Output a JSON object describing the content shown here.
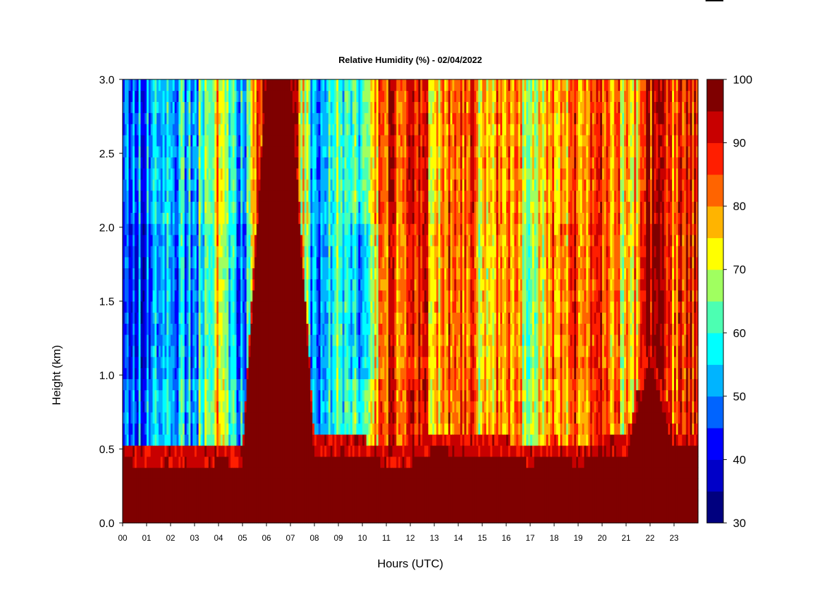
{
  "chart_data": {
    "type": "heatmap",
    "title": "Relative Humidity (%) - 02/04/2022",
    "xlabel": "Hours (UTC)",
    "ylabel": "Height (km)",
    "xlim": [
      0,
      24
    ],
    "ylim": [
      0,
      3.0
    ],
    "x_ticks": [
      "00",
      "01",
      "02",
      "03",
      "04",
      "05",
      "06",
      "07",
      "08",
      "09",
      "10",
      "11",
      "12",
      "13",
      "14",
      "15",
      "16",
      "17",
      "18",
      "19",
      "20",
      "21",
      "22",
      "23"
    ],
    "y_ticks": [
      "0.0",
      "0.5",
      "1.0",
      "1.5",
      "2.0",
      "2.5",
      "3.0"
    ],
    "x_tick_values": [
      0,
      1,
      2,
      3,
      4,
      5,
      6,
      7,
      8,
      9,
      10,
      11,
      12,
      13,
      14,
      15,
      16,
      17,
      18,
      19,
      20,
      21,
      22,
      23
    ],
    "y_tick_values": [
      0,
      0.5,
      1.0,
      1.5,
      2.0,
      2.5,
      3.0
    ],
    "colorbar": {
      "levels": [
        30,
        35,
        40,
        45,
        50,
        55,
        60,
        65,
        70,
        75,
        80,
        85,
        90,
        95,
        100
      ],
      "labels": [
        "30",
        "40",
        "50",
        "60",
        "70",
        "80",
        "90",
        "100"
      ],
      "label_values": [
        30,
        40,
        50,
        60,
        70,
        80,
        90,
        100
      ],
      "colors": [
        "#00007f",
        "#0000c8",
        "#0000ff",
        "#0064ff",
        "#00b4ff",
        "#00ffff",
        "#4cffb2",
        "#a0ff60",
        "#ffff00",
        "#ffb400",
        "#ff6400",
        "#ff1e00",
        "#c80000",
        "#7f0000"
      ]
    },
    "rh_by_hour": {
      "hours": [
        0,
        1,
        2,
        3,
        4,
        5,
        6,
        7,
        8,
        9,
        10,
        11,
        12,
        13,
        14,
        15,
        16,
        17,
        18,
        19,
        20,
        21,
        22,
        23
      ],
      "surface_layer_top_km": [
        0.42,
        0.4,
        0.38,
        0.38,
        0.42,
        0.4,
        3.0,
        3.0,
        0.45,
        0.45,
        0.45,
        0.4,
        0.4,
        0.5,
        0.48,
        0.46,
        0.45,
        0.4,
        0.45,
        0.4,
        0.45,
        0.45,
        1.1,
        0.5
      ],
      "upper_rh": [
        55,
        50,
        52,
        55,
        75,
        50,
        98,
        98,
        50,
        65,
        55,
        90,
        85,
        80,
        85,
        78,
        82,
        72,
        78,
        82,
        92,
        72,
        92,
        85
      ],
      "mid_rh_1_2km": [
        52,
        45,
        50,
        52,
        72,
        45,
        98,
        98,
        48,
        65,
        45,
        88,
        82,
        82,
        85,
        75,
        82,
        68,
        80,
        85,
        92,
        70,
        98,
        85
      ]
    }
  }
}
